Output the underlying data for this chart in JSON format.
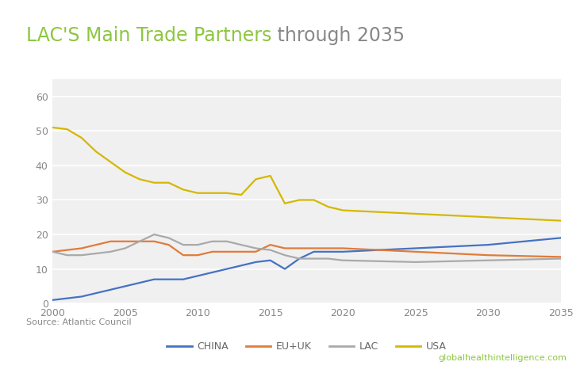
{
  "title_green": "LAC'S Main Trade Partners",
  "title_black": " through 2035",
  "chart_background": "#f0f0f0",
  "outer_background": "#ffffff",
  "source_text": "Source: Atlantic Council",
  "footer_url": "globalhealthintelligence.com",
  "series": {
    "CHINA": {
      "color": "#4472c4",
      "x": [
        2000,
        2001,
        2002,
        2003,
        2004,
        2005,
        2006,
        2007,
        2008,
        2009,
        2010,
        2011,
        2012,
        2013,
        2014,
        2015,
        2016,
        2017,
        2018,
        2019,
        2020,
        2025,
        2030,
        2035
      ],
      "y": [
        1,
        1.5,
        2,
        3,
        4,
        5,
        6,
        7,
        7,
        7,
        8,
        9,
        10,
        11,
        12,
        12.5,
        10,
        13,
        15,
        15,
        15,
        16,
        17,
        19
      ]
    },
    "EU+UK": {
      "color": "#e07b39",
      "x": [
        2000,
        2001,
        2002,
        2003,
        2004,
        2005,
        2006,
        2007,
        2008,
        2009,
        2010,
        2011,
        2012,
        2013,
        2014,
        2015,
        2016,
        2017,
        2018,
        2019,
        2020,
        2025,
        2030,
        2035
      ],
      "y": [
        15,
        15.5,
        16,
        17,
        18,
        18,
        18,
        18,
        17,
        14,
        14,
        15,
        15,
        15,
        15,
        17,
        16,
        16,
        16,
        16,
        16,
        15,
        14,
        13.5
      ]
    },
    "LAC": {
      "color": "#a9a9a9",
      "x": [
        2000,
        2001,
        2002,
        2003,
        2004,
        2005,
        2006,
        2007,
        2008,
        2009,
        2010,
        2011,
        2012,
        2013,
        2014,
        2015,
        2016,
        2017,
        2018,
        2019,
        2020,
        2025,
        2030,
        2035
      ],
      "y": [
        15,
        14,
        14,
        14.5,
        15,
        16,
        18,
        20,
        19,
        17,
        17,
        18,
        18,
        17,
        16,
        15.5,
        14,
        13,
        13,
        13,
        12.5,
        12,
        12.5,
        13
      ]
    },
    "USA": {
      "color": "#d4b800",
      "x": [
        2000,
        2001,
        2002,
        2003,
        2004,
        2005,
        2006,
        2007,
        2008,
        2009,
        2010,
        2011,
        2012,
        2013,
        2014,
        2015,
        2016,
        2017,
        2018,
        2019,
        2020,
        2025,
        2030,
        2035
      ],
      "y": [
        51,
        50.5,
        48,
        44,
        41,
        38,
        36,
        35,
        35,
        33,
        32,
        32,
        32,
        31.5,
        36,
        37,
        29,
        30,
        30,
        28,
        27,
        26,
        25,
        24
      ]
    }
  },
  "series_order": [
    "CHINA",
    "EU+UK",
    "LAC",
    "USA"
  ],
  "xlim": [
    2000,
    2035
  ],
  "ylim": [
    0,
    65
  ],
  "yticks": [
    0,
    10,
    20,
    30,
    40,
    50,
    60
  ],
  "xticks": [
    2000,
    2005,
    2010,
    2015,
    2020,
    2025,
    2030,
    2035
  ],
  "title_green_color": "#8dc63f",
  "title_gray_color": "#888888",
  "axis_tick_color": "#888888",
  "title_fontsize": 17,
  "axis_label_fontsize": 9,
  "legend_fontsize": 9,
  "source_fontsize": 8,
  "footer_fontsize": 8
}
